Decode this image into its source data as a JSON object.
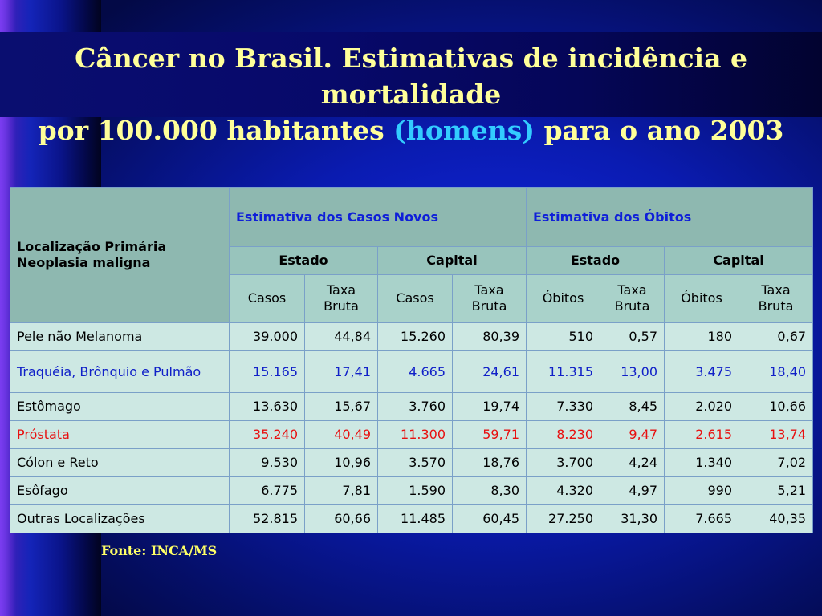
{
  "title": {
    "line1": "Câncer no Brasil.  Estimativas de incidência e mortalidade",
    "line2_pre": "por 100.000 habitantes ",
    "line2_highlight": "(homens)",
    "line2_post": "  para o ano 2003"
  },
  "table": {
    "corner_label_1": "Localização Primária",
    "corner_label_2": "Neoplasia maligna",
    "group_headers": [
      "Estimativa dos Casos Novos",
      "Estimativa dos Óbitos"
    ],
    "sub_headers": [
      "Estado",
      "Capital",
      "Estado",
      "Capital"
    ],
    "column_headers": [
      "Casos",
      "Taxa Bruta",
      "Casos",
      "Taxa Bruta",
      "Óbitos",
      "Taxa Bruta",
      "Óbitos",
      "Taxa Bruta"
    ],
    "rows": [
      {
        "location": "Pele não Melanoma",
        "values": [
          "39.000",
          "44,84",
          "15.260",
          "80,39",
          "510",
          "0,57",
          "180",
          "0,67"
        ],
        "style": "normal"
      },
      {
        "location": "Traquéia, Brônquio e Pulmão",
        "values": [
          "15.165",
          "17,41",
          "4.665",
          "24,61",
          "11.315",
          "13,00",
          "3.475",
          "18,40"
        ],
        "style": "blue"
      },
      {
        "location": "Estômago",
        "values": [
          "13.630",
          "15,67",
          "3.760",
          "19,74",
          "7.330",
          "8,45",
          "2.020",
          "10,66"
        ],
        "style": "normal"
      },
      {
        "location": "Próstata",
        "values": [
          "35.240",
          "40,49",
          "11.300",
          "59,71",
          "8.230",
          "9,47",
          "2.615",
          "13,74"
        ],
        "style": "red"
      },
      {
        "location": "Cólon e Reto",
        "values": [
          "9.530",
          "10,96",
          "3.570",
          "18,76",
          "3.700",
          "4,24",
          "1.340",
          "7,02"
        ],
        "style": "normal"
      },
      {
        "location": "Esôfago",
        "values": [
          "6.775",
          "7,81",
          "1.590",
          "8,30",
          "4.320",
          "4,97",
          "990",
          "5,21"
        ],
        "style": "normal"
      },
      {
        "location": "Outras Localizações",
        "values": [
          "52.815",
          "60,66",
          "11.485",
          "60,45",
          "27.250",
          "31,30",
          "7.665",
          "40,35"
        ],
        "style": "normal"
      }
    ]
  },
  "source": "Fonte: INCA/MS",
  "colors": {
    "title": "#ffff99",
    "title_highlight": "#33ccff",
    "group_header_text": "#0f1fd8",
    "row_blue": "#1020c8",
    "row_red": "#e81010",
    "source": "#ffff66"
  }
}
